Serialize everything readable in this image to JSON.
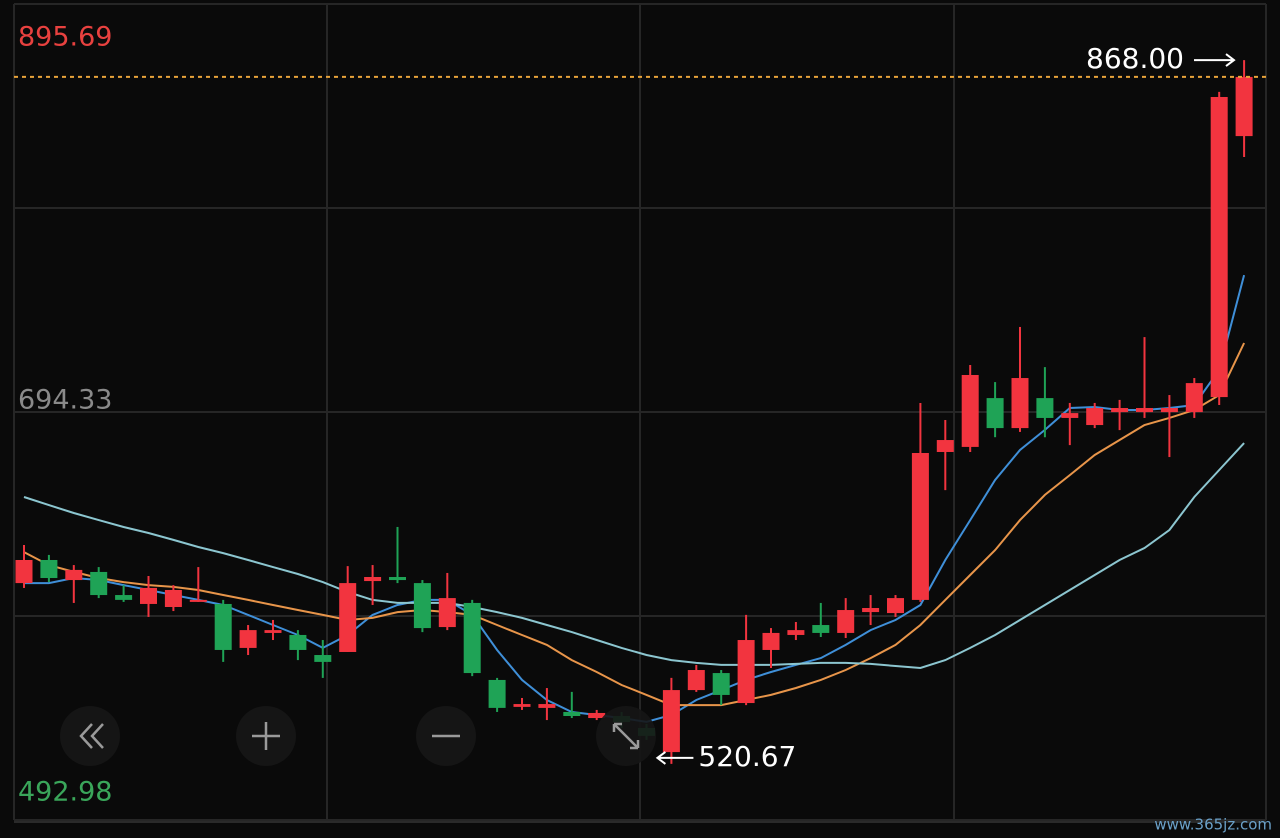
{
  "chart_data": {
    "type": "candlestick",
    "up_color": "#f2343f",
    "down_color": "#1fa356",
    "last_line_color": "#e8a33a",
    "ylim": [
      492.98,
      895.69
    ],
    "yticks": [
      895.69,
      694.33,
      492.98
    ],
    "ytick_colors": [
      "#e8413f",
      "#8a8a8a",
      "#3aa65a"
    ],
    "max_label": "868.00",
    "min_label": "520.67",
    "open": [
      609.9,
      621.3,
      611.4,
      615.4,
      604.0,
      599.6,
      598.1,
      601.1,
      599.6,
      577.9,
      585.3,
      584.3,
      574.4,
      575.9,
      610.9,
      612.9,
      609.9,
      588.2,
      600.1,
      562.1,
      548.8,
      548.3,
      546.3,
      543.3,
      544.3,
      538.4,
      526.5,
      557.1,
      565.5,
      550.7,
      576.9,
      584.3,
      589.2,
      585.3,
      595.6,
      595.1,
      601.6,
      674.6,
      677.1,
      701.2,
      686.4,
      701.2,
      691.4,
      687.9,
      694.3,
      694.3,
      694.3,
      694.3,
      701.7,
      830.5
    ],
    "high": [
      628.7,
      623.8,
      618.8,
      617.8,
      608.9,
      613.4,
      608.9,
      617.8,
      601.6,
      589.2,
      591.7,
      586.7,
      581.8,
      618.3,
      618.8,
      637.6,
      611.4,
      614.9,
      601.6,
      563.1,
      553.2,
      558.1,
      556.2,
      547.3,
      546.3,
      540.4,
      563.1,
      569.5,
      567.0,
      594.2,
      587.7,
      590.7,
      600.1,
      602.5,
      604.0,
      604.0,
      698.8,
      690.4,
      717.5,
      709.1,
      736.3,
      716.5,
      698.8,
      698.8,
      700.3,
      731.3,
      702.7,
      711.1,
      852.3,
      868.0
    ],
    "low": [
      607.5,
      610.4,
      600.1,
      602.5,
      600.6,
      593.2,
      596.1,
      600.6,
      571.0,
      574.4,
      581.8,
      571.9,
      563.1,
      575.9,
      599.1,
      609.9,
      585.7,
      586.7,
      564.0,
      546.3,
      547.3,
      542.3,
      543.3,
      542.3,
      538.4,
      532.5,
      520.67,
      556.2,
      549.7,
      549.7,
      568.0,
      581.8,
      583.3,
      582.8,
      589.2,
      593.2,
      600.6,
      655.8,
      674.6,
      681.9,
      684.5,
      681.9,
      678.0,
      686.4,
      685.4,
      691.4,
      672.1,
      691.4,
      697.8,
      820.2
    ],
    "close": [
      621.3,
      612.4,
      616.4,
      604.0,
      601.6,
      607.5,
      606.5,
      601.6,
      576.9,
      586.7,
      586.7,
      576.9,
      571.0,
      609.9,
      612.9,
      611.4,
      587.7,
      602.5,
      565.5,
      548.3,
      550.2,
      550.2,
      544.3,
      545.8,
      541.3,
      534.5,
      557.1,
      567.0,
      554.7,
      581.8,
      585.3,
      586.7,
      585.3,
      596.6,
      597.6,
      602.5,
      674.1,
      680.5,
      712.6,
      686.4,
      711.1,
      691.4,
      693.8,
      696.3,
      696.3,
      696.3,
      696.3,
      708.6,
      849.8,
      859.7
    ],
    "series": [
      {
        "color": "#3f8fd8",
        "values": [
          609.9,
          609.9,
          612.4,
          611.4,
          608.9,
          606.5,
          604.0,
          601.6,
          599.1,
          594.2,
          589.2,
          584.3,
          577.9,
          584.3,
          594.2,
          599.1,
          601.6,
          601.6,
          594.2,
          576.9,
          562.1,
          552.2,
          546.3,
          544.8,
          543.3,
          541.4,
          544.8,
          552.2,
          557.1,
          562.1,
          566.0,
          569.5,
          572.9,
          579.4,
          586.7,
          591.7,
          599.1,
          621.3,
          641.0,
          660.8,
          675.6,
          685.5,
          696.3,
          696.8,
          695.3,
          695.3,
          696.3,
          697.8,
          715.1,
          761.9
        ]
      },
      {
        "color": "#e8954a",
        "values": [
          625.2,
          618.8,
          615.4,
          612.4,
          610.4,
          608.9,
          608.0,
          606.5,
          604.0,
          601.6,
          599.1,
          596.6,
          594.2,
          591.7,
          592.7,
          595.6,
          596.6,
          595.6,
          594.2,
          589.2,
          584.3,
          579.4,
          571.9,
          566.0,
          559.6,
          554.7,
          549.7,
          549.7,
          549.7,
          552.2,
          554.7,
          558.1,
          562.1,
          567.0,
          572.9,
          579.4,
          589.2,
          601.6,
          613.9,
          626.2,
          641.0,
          653.4,
          663.2,
          673.1,
          680.5,
          687.9,
          691.4,
          695.3,
          702.7,
          728.4
        ]
      },
      {
        "color": "#8cc6d0",
        "values": [
          652.4,
          648.4,
          644.5,
          641.0,
          637.6,
          634.6,
          631.2,
          627.7,
          624.7,
          621.3,
          617.8,
          614.4,
          610.4,
          605.5,
          601.6,
          600.1,
          600.1,
          600.1,
          598.1,
          595.6,
          592.7,
          589.2,
          585.7,
          581.8,
          577.9,
          574.4,
          571.9,
          570.5,
          569.5,
          569.5,
          569.5,
          570.0,
          570.5,
          570.5,
          570.0,
          569.0,
          568.0,
          571.9,
          577.9,
          584.3,
          591.7,
          599.1,
          606.5,
          613.9,
          621.3,
          627.2,
          636.1,
          652.4,
          665.7,
          679.0
        ]
      }
    ],
    "watermark": "www.365jz.com"
  }
}
